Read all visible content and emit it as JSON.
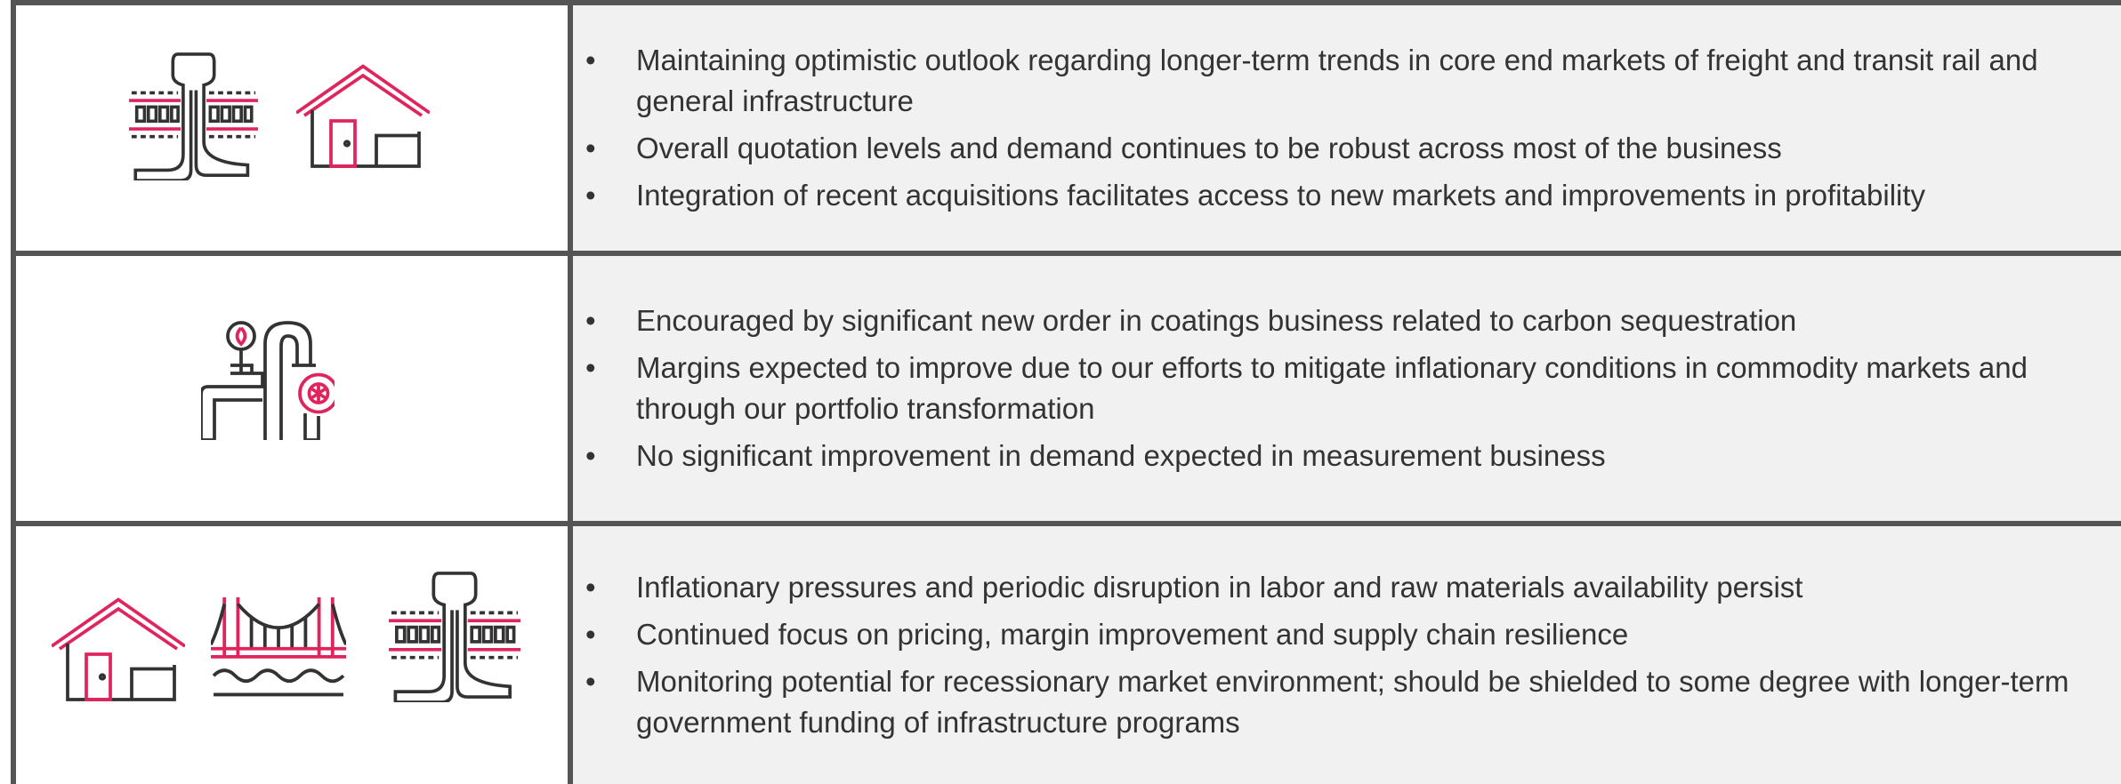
{
  "rows": [
    {
      "bullets": [
        "Maintaining optimistic outlook regarding longer-term trends in core end markets of freight and transit rail and general infrastructure",
        "Overall quotation levels and demand continues to be robust across most of the business",
        "Integration of recent acquisitions facilitates access to new markets and improvements in profitability"
      ]
    },
    {
      "bullets": [
        "Encouraged by significant new order in coatings business related to carbon sequestration",
        "Margins expected to improve due to our efforts to mitigate inflationary conditions in commodity markets and through our portfolio transformation",
        "No significant improvement in demand expected in measurement business"
      ]
    },
    {
      "bullets": [
        "Inflationary pressures and periodic disruption in labor and raw materials availability persist",
        "Continued focus on pricing, margin improvement and supply chain resilience",
        "Monitoring potential for recessionary market environment; should be shielded to some degree with longer-term government funding of infrastructure programs"
      ]
    }
  ]
}
